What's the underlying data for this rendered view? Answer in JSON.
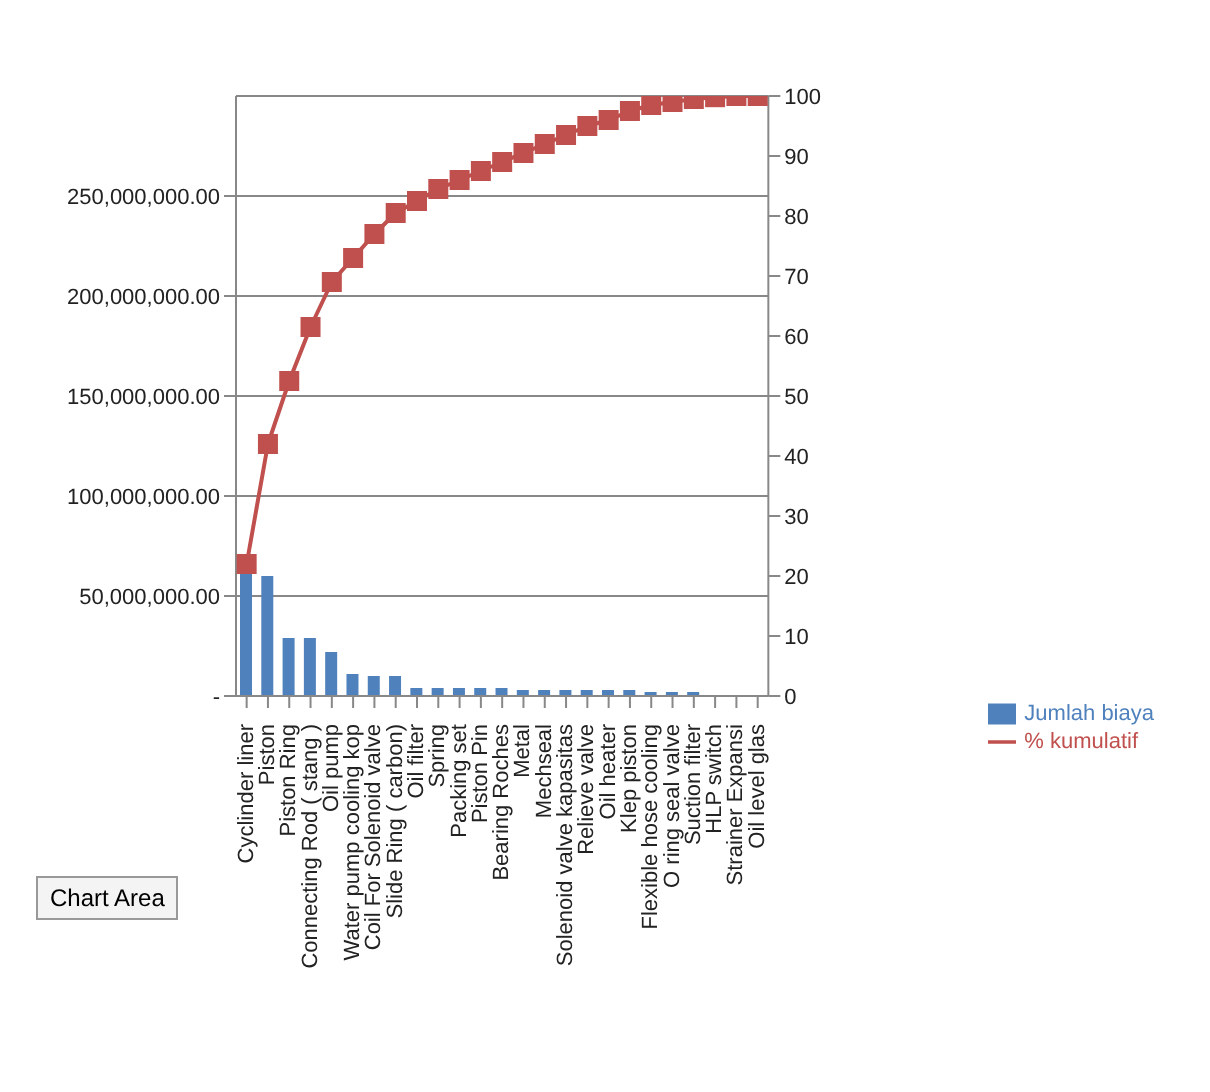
{
  "chart_data": {
    "type": "bar",
    "categories": [
      "Cyclinder liner",
      "Piston",
      "Piston Ring",
      "Connecting Rod ( stang )",
      "Oil pump",
      "Water pump cooling kop",
      "Coil For Solenoid valve",
      "Slide Ring ( carbon)",
      "Oil filter",
      "Spring",
      "Packing set",
      "Piston Pin",
      "Bearing Roches",
      "Metal",
      "Mechseal",
      "Solenoid valve kapasitas",
      "Relieve valve",
      "Oil heater",
      "Klep piston",
      "Flexible hose cooling",
      "O ring seal valve",
      "Suction filter",
      "HLP switch",
      "Strainer Expansi",
      "Oil level glas"
    ],
    "series": [
      {
        "name": "Jumlah biaya",
        "color": "#4f81bd",
        "values": [
          62000000,
          60000000,
          29000000,
          29000000,
          22000000,
          11000000,
          10000000,
          10000000,
          4000000,
          4000000,
          4000000,
          4000000,
          4000000,
          3000000,
          3000000,
          3000000,
          3000000,
          3000000,
          3000000,
          2000000,
          2000000,
          2000000,
          500000,
          500000,
          500000
        ]
      },
      {
        "name": "% kumulatif",
        "type": "line",
        "axis": "y2",
        "color": "#c0504d",
        "marker": "square",
        "values": [
          22,
          42,
          52.5,
          61.5,
          69,
          73,
          77,
          80.5,
          82.5,
          84.5,
          86,
          87.5,
          89,
          90.5,
          92,
          93.5,
          95,
          96,
          97.5,
          98.5,
          99,
          99.5,
          99.8,
          100,
          100
        ]
      }
    ],
    "ylim": [
      0,
      300000000
    ],
    "yticks": [
      {
        "value": 0,
        "label": "-"
      },
      {
        "value": 50000000,
        "label": "50,000,000.00"
      },
      {
        "value": 100000000,
        "label": "100,000,000.00"
      },
      {
        "value": 150000000,
        "label": "150,000,000.00"
      },
      {
        "value": 200000000,
        "label": "200,000,000.00"
      },
      {
        "value": 250000000,
        "label": "250,000,000.00"
      }
    ],
    "y2lim": [
      0,
      100
    ],
    "y2ticks": [
      0,
      10,
      20,
      30,
      40,
      50,
      60,
      70,
      80,
      90,
      100
    ],
    "grid": "y",
    "legend": "right",
    "annotations": [
      "Chart Area"
    ]
  }
}
